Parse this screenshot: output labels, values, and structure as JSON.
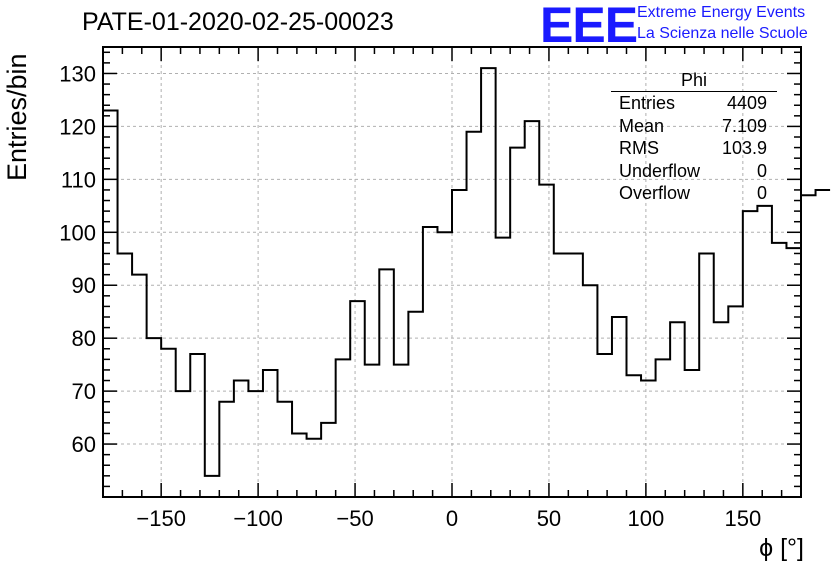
{
  "title": "PATE-01-2020-02-25-00023",
  "logo": {
    "mark": "EEE",
    "line1": "Extreme Energy Events",
    "line2": "La Scienza nelle Scuole",
    "color": "#1a1aff"
  },
  "stats_box": {
    "name": "Phi",
    "rows": [
      {
        "label": "Entries",
        "value": "4409"
      },
      {
        "label": "Mean",
        "value": "7.109"
      },
      {
        "label": "RMS",
        "value": "103.9"
      },
      {
        "label": "Underflow",
        "value": "0"
      },
      {
        "label": "Overflow",
        "value": "0"
      }
    ]
  },
  "chart_data": {
    "type": "bar",
    "style": "step-histogram",
    "xlabel": "ϕ [°]",
    "ylabel": "Entries/bin",
    "xlim": [
      -180,
      180
    ],
    "ylim": [
      50,
      135
    ],
    "bin_width": 7.5,
    "x_ticks": [
      -150,
      -100,
      -50,
      0,
      50,
      100,
      150
    ],
    "x_tick_labels": [
      "−150",
      "−100",
      "−50",
      "0",
      "50",
      "100",
      "150"
    ],
    "y_ticks": [
      60,
      70,
      80,
      90,
      100,
      110,
      120,
      130
    ],
    "y_tick_labels": [
      "60",
      "70",
      "80",
      "90",
      "100",
      "110",
      "120",
      "130"
    ],
    "grid": true,
    "bin_edges_start": -180,
    "values": [
      123,
      96,
      92,
      80,
      78,
      70,
      77,
      54,
      68,
      72,
      70,
      74,
      68,
      62,
      61,
      64,
      76,
      87,
      75,
      93,
      75,
      85,
      101,
      100,
      108,
      119,
      131,
      99,
      116,
      121,
      109,
      96,
      96,
      90,
      77,
      84,
      73,
      72,
      76,
      83,
      74,
      96,
      83,
      86,
      104,
      105,
      98,
      97,
      107,
      108
    ]
  }
}
